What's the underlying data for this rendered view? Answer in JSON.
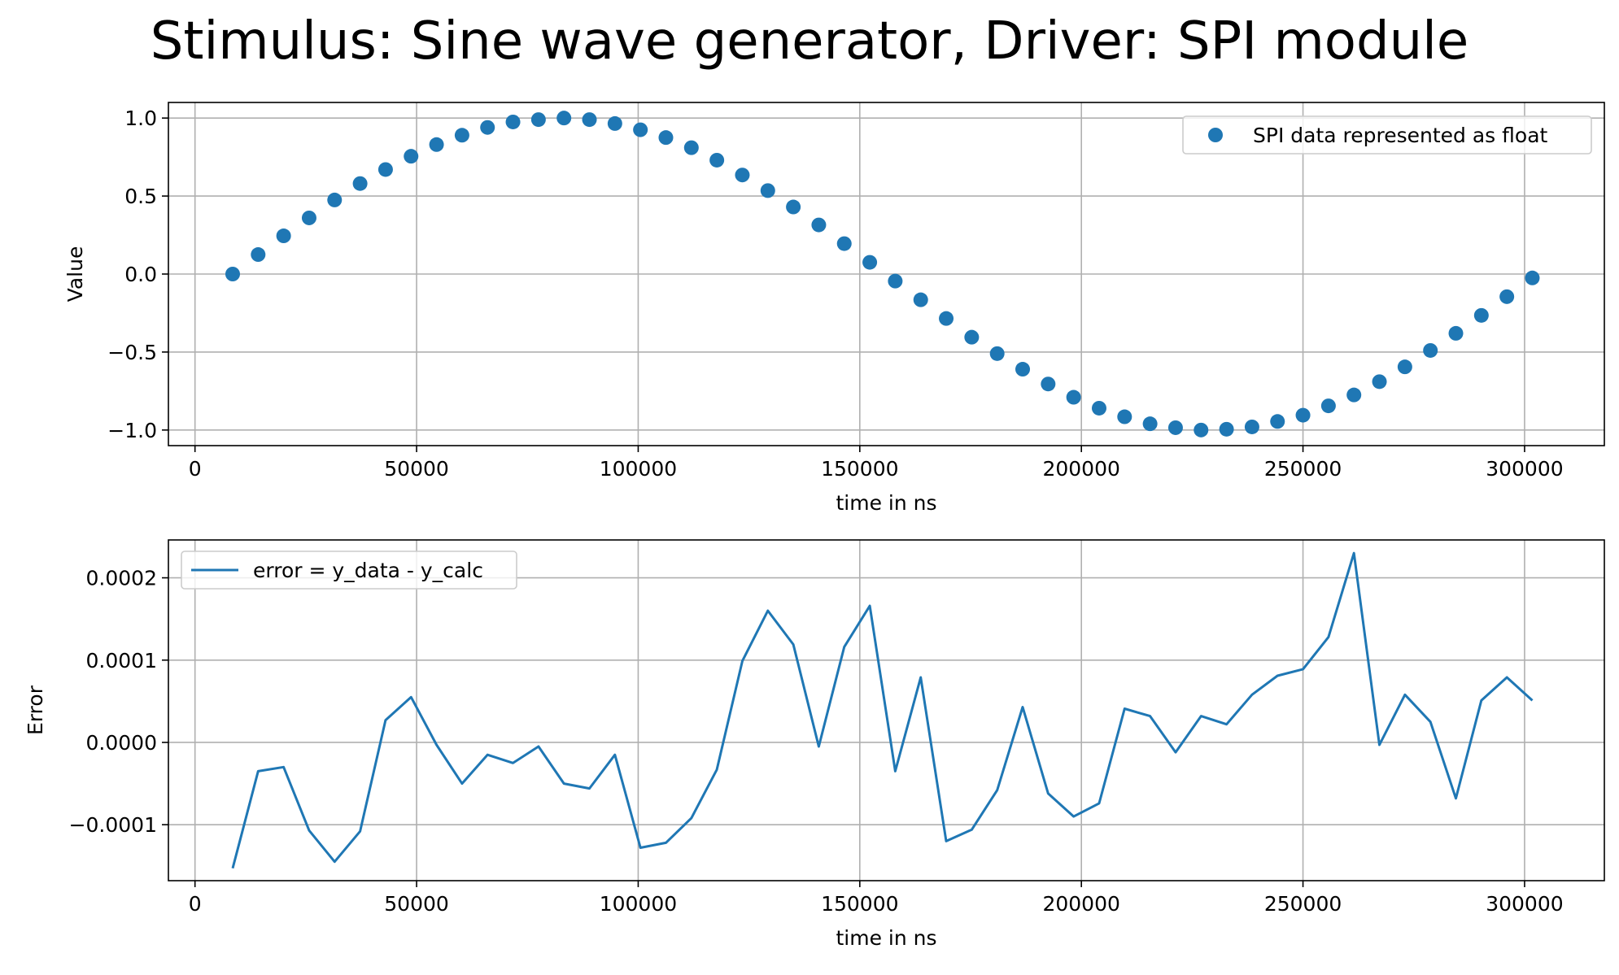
{
  "figure": {
    "title": "Stimulus: Sine wave generator, Driver: SPI module"
  },
  "chart_data": [
    {
      "type": "scatter",
      "xlabel": "time in ns",
      "ylabel": "Value",
      "xlim": [
        -6000,
        318000
      ],
      "ylim": [
        -1.1,
        1.1
      ],
      "xticks": [
        0,
        50000,
        100000,
        150000,
        200000,
        250000,
        300000
      ],
      "xtick_labels": [
        "0",
        "50000",
        "100000",
        "150000",
        "200000",
        "250000",
        "300000"
      ],
      "yticks": [
        1.0,
        0.5,
        0.0,
        -0.5,
        -1.0
      ],
      "ytick_labels": [
        "1.0",
        "0.5",
        "0.0",
        "−0.5",
        "−1.0"
      ],
      "grid": true,
      "legend_position": "top-right",
      "series": [
        {
          "name": "SPI data represented as float",
          "color": "#1f77b4",
          "x": [
            8500,
            14250,
            20000,
            25750,
            31500,
            37250,
            43000,
            48750,
            54500,
            60250,
            66000,
            71750,
            77500,
            83250,
            89000,
            94750,
            100500,
            106250,
            112000,
            117750,
            123500,
            129250,
            135000,
            140750,
            146500,
            152250,
            158000,
            163750,
            169500,
            175250,
            181000,
            186750,
            192500,
            198250,
            204000,
            209750,
            215500,
            221250,
            227000,
            232750,
            238500,
            244250,
            250000,
            255750,
            261500,
            267250,
            273000,
            278750,
            284500,
            290250,
            296000,
            301750
          ],
          "y": [
            0.0,
            0.125,
            0.245,
            0.36,
            0.475,
            0.58,
            0.67,
            0.755,
            0.83,
            0.89,
            0.94,
            0.975,
            0.99,
            1.0,
            0.99,
            0.965,
            0.925,
            0.875,
            0.81,
            0.73,
            0.635,
            0.535,
            0.43,
            0.315,
            0.195,
            0.075,
            -0.045,
            -0.165,
            -0.285,
            -0.405,
            -0.51,
            -0.61,
            -0.705,
            -0.79,
            -0.86,
            -0.915,
            -0.96,
            -0.985,
            -1.0,
            -0.995,
            -0.98,
            -0.945,
            -0.905,
            -0.845,
            -0.775,
            -0.69,
            -0.595,
            -0.49,
            -0.38,
            -0.265,
            -0.145,
            -0.025
          ]
        }
      ]
    },
    {
      "type": "line",
      "xlabel": "time in ns",
      "ylabel": "Error",
      "xlim": [
        -6000,
        318000
      ],
      "ylim": [
        -0.000168,
        0.000246
      ],
      "xticks": [
        0,
        50000,
        100000,
        150000,
        200000,
        250000,
        300000
      ],
      "xtick_labels": [
        "0",
        "50000",
        "100000",
        "150000",
        "200000",
        "250000",
        "300000"
      ],
      "yticks": [
        0.0002,
        0.0001,
        0.0,
        -0.0001
      ],
      "ytick_labels": [
        "0.0002",
        "0.0001",
        "0.0000",
        "−0.0001"
      ],
      "grid": true,
      "legend_position": "top-left",
      "series": [
        {
          "name": "error = y_data - y_calc",
          "color": "#1f77b4",
          "x": [
            8500,
            14250,
            20000,
            25750,
            31500,
            37250,
            43000,
            48750,
            54500,
            60250,
            66000,
            71750,
            77500,
            83250,
            89000,
            94750,
            100500,
            106250,
            112000,
            117750,
            123500,
            129250,
            135000,
            140750,
            146500,
            152250,
            158000,
            163750,
            169500,
            175250,
            181000,
            186750,
            192500,
            198250,
            204000,
            209750,
            215500,
            221250,
            227000,
            232750,
            238500,
            244250,
            250000,
            255750,
            261500,
            267250,
            273000,
            278750,
            284500,
            290250,
            296000,
            301750
          ],
          "y": [
            -0.000153,
            -3.5e-05,
            -3e-05,
            -0.000107,
            -0.000145,
            -0.000108,
            2.7e-05,
            5.5e-05,
            -3e-06,
            -5e-05,
            -1.5e-05,
            -2.5e-05,
            -5e-06,
            -5e-05,
            -5.6e-05,
            -1.5e-05,
            -0.000128,
            -0.000122,
            -9.2e-05,
            -3.3e-05,
            9.9e-05,
            0.00016,
            0.000119,
            -5e-06,
            0.000116,
            0.000166,
            -3.5e-05,
            7.9e-05,
            -0.00012,
            -0.000106,
            -5.8e-05,
            4.3e-05,
            -6.2e-05,
            -9e-05,
            -7.4e-05,
            4.1e-05,
            3.2e-05,
            -1.2e-05,
            3.2e-05,
            2.2e-05,
            5.8e-05,
            8.1e-05,
            8.9e-05,
            0.000128,
            0.00023,
            -3e-06,
            5.8e-05,
            2.5e-05,
            -6.8e-05,
            5.1e-05,
            7.9e-05,
            5.1e-05
          ]
        }
      ]
    }
  ]
}
